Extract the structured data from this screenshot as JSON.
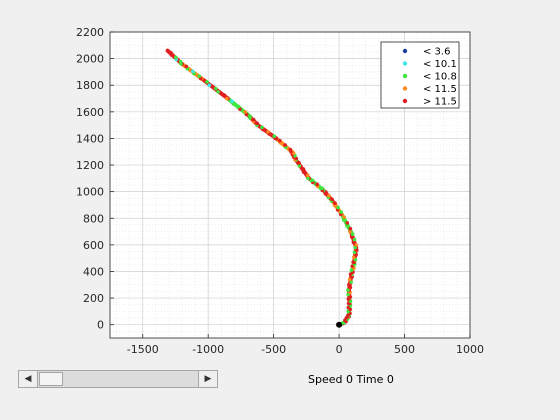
{
  "colors": {
    "axis": "#262626",
    "grid": "#dcdcdc",
    "background": "#f0f0f0"
  },
  "chart_data": {
    "type": "scatter",
    "xlim": [
      -1750,
      1000
    ],
    "ylim": [
      -100,
      2200
    ],
    "xticks": [
      -1500,
      -1000,
      -500,
      0,
      500,
      1000
    ],
    "yticks": [
      0,
      200,
      400,
      600,
      800,
      1000,
      1200,
      1400,
      1600,
      1800,
      2000,
      2200
    ],
    "xtick_labels": [
      "-1500",
      "-1000",
      "-500",
      "0",
      "500",
      "1000"
    ],
    "ytick_labels": [
      "0",
      "200",
      "400",
      "600",
      "800",
      "1000",
      "1200",
      "1400",
      "1600",
      "1800",
      "2000",
      "2200"
    ],
    "grid": true,
    "minor_grid": true,
    "legend_position": "top-right",
    "legend": [
      {
        "label": "< 3.6",
        "color": "#1f3fa0"
      },
      {
        "label": "< 10.1",
        "color": "#3de8e8"
      },
      {
        "label": "< 10.8",
        "color": "#3ee63e"
      },
      {
        "label": "< 11.5",
        "color": "#ff8a1e"
      },
      {
        "label": "> 11.5",
        "color": "#e02020"
      }
    ],
    "start_marker": {
      "x": 0,
      "y": 0,
      "color": "#000000"
    },
    "path_points": [
      [
        0,
        0
      ],
      [
        40,
        15
      ],
      [
        75,
        70
      ],
      [
        80,
        160
      ],
      [
        75,
        260
      ],
      [
        95,
        380
      ],
      [
        115,
        470
      ],
      [
        130,
        580
      ],
      [
        90,
        700
      ],
      [
        20,
        830
      ],
      [
        -50,
        930
      ],
      [
        -120,
        1010
      ],
      [
        -230,
        1100
      ],
      [
        -330,
        1240
      ],
      [
        -360,
        1300
      ],
      [
        -480,
        1400
      ],
      [
        -620,
        1500
      ],
      [
        -700,
        1580
      ],
      [
        -850,
        1700
      ],
      [
        -1050,
        1850
      ],
      [
        -1200,
        1960
      ],
      [
        -1310,
        2060
      ]
    ],
    "segment_colors": [
      "#3ee63e",
      "#3de8e8",
      "#3ee63e",
      "#e02020",
      "#e02020",
      "#3ee63e",
      "#e02020",
      "#e02020",
      "#3ee63e",
      "#ff8a1e",
      "#e02020",
      "#3ee63e",
      "#e02020",
      "#3ee63e",
      "#ff8a1e",
      "#e02020",
      "#e02020",
      "#3ee63e",
      "#e02020",
      "#ff8a1e",
      "#e02020",
      "#3ee63e"
    ]
  },
  "controls": {
    "slider_left_arrow": "◀",
    "slider_right_arrow": "▶",
    "status_text": "Speed 0 Time 0"
  }
}
